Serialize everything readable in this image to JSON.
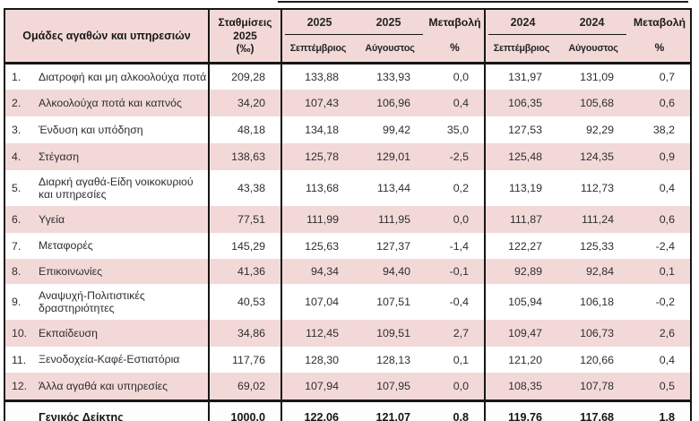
{
  "colors": {
    "stripe_pink": "#f2d9d8",
    "border_black": "#161616",
    "text": "#2e2e2e"
  },
  "table": {
    "header": {
      "groups_label": "Ομάδες αγαθών και υπηρεσιών",
      "weights": {
        "line1": "Σταθμίσεις",
        "line2": "2025",
        "line3": "(‰)"
      },
      "year_2025": "2025",
      "year_2024": "2024",
      "month_september": "Σεπτέμβριος",
      "month_august": "Αύγουστος",
      "change": {
        "line1": "Μεταβολή",
        "line2": "%"
      }
    },
    "rows": [
      {
        "num": "1.",
        "label": "Διατροφή και μη αλκοολούχα ποτά",
        "weight": "209,28",
        "sep25": "133,88",
        "aug25": "133,93",
        "chg25": "0,0",
        "sep24": "131,97",
        "aug24": "131,09",
        "chg24": "0,7"
      },
      {
        "num": "2.",
        "label": "Αλκοολούχα ποτά και καπνός",
        "weight": "34,20",
        "sep25": "107,43",
        "aug25": "106,96",
        "chg25": "0,4",
        "sep24": "106,35",
        "aug24": "105,68",
        "chg24": "0,6"
      },
      {
        "num": "3.",
        "label": "Ένδυση και υπόδηση",
        "weight": "48,18",
        "sep25": "134,18",
        "aug25": "99,42",
        "chg25": "35,0",
        "sep24": "127,53",
        "aug24": "92,29",
        "chg24": "38,2"
      },
      {
        "num": "4.",
        "label": "Στέγαση",
        "weight": "138,63",
        "sep25": "125,78",
        "aug25": "129,01",
        "chg25": "-2,5",
        "sep24": "125,48",
        "aug24": "124,35",
        "chg24": "0,9"
      },
      {
        "num": "5.",
        "label": "Διαρκή αγαθά-Είδη νοικοκυριού και υπηρεσίες",
        "weight": "43,38",
        "sep25": "113,68",
        "aug25": "113,44",
        "chg25": "0,2",
        "sep24": "113,19",
        "aug24": "112,73",
        "chg24": "0,4"
      },
      {
        "num": "6.",
        "label": "Υγεία",
        "weight": "77,51",
        "sep25": "111,99",
        "aug25": "111,95",
        "chg25": "0,0",
        "sep24": "111,87",
        "aug24": "111,24",
        "chg24": "0,6"
      },
      {
        "num": "7.",
        "label": "Μεταφορές",
        "weight": "145,29",
        "sep25": "125,63",
        "aug25": "127,37",
        "chg25": "-1,4",
        "sep24": "122,27",
        "aug24": "125,33",
        "chg24": "-2,4"
      },
      {
        "num": "8.",
        "label": "Επικοινωνίες",
        "weight": "41,36",
        "sep25": "94,34",
        "aug25": "94,40",
        "chg25": "-0,1",
        "sep24": "92,89",
        "aug24": "92,84",
        "chg24": "0,1"
      },
      {
        "num": "9.",
        "label": "Αναψυχή-Πολιτιστικές δραστηριότητες",
        "weight": "40,53",
        "sep25": "107,04",
        "aug25": "107,51",
        "chg25": "-0,4",
        "sep24": "105,94",
        "aug24": "106,18",
        "chg24": "-0,2"
      },
      {
        "num": "10.",
        "label": "Εκπαίδευση",
        "weight": "34,86",
        "sep25": "112,45",
        "aug25": "109,51",
        "chg25": "2,7",
        "sep24": "109,47",
        "aug24": "106,73",
        "chg24": "2,6"
      },
      {
        "num": "11.",
        "label": "Ξενοδοχεία-Καφέ-Εστιατόρια",
        "weight": "117,76",
        "sep25": "128,30",
        "aug25": "128,13",
        "chg25": "0,1",
        "sep24": "121,20",
        "aug24": "120,66",
        "chg24": "0,4"
      },
      {
        "num": "12.",
        "label": "Άλλα αγαθά και υπηρεσίες",
        "weight": "69,02",
        "sep25": "107,94",
        "aug25": "107,95",
        "chg25": "0,0",
        "sep24": "108,35",
        "aug24": "107,78",
        "chg24": "0,5"
      }
    ],
    "total": {
      "num": "",
      "label": "Γενικός Δείκτης",
      "weight": "1000.0",
      "sep25": "122.06",
      "aug25": "121.07",
      "chg25": "0.8",
      "sep24": "119.76",
      "aug24": "117.68",
      "chg24": "1.8"
    }
  }
}
